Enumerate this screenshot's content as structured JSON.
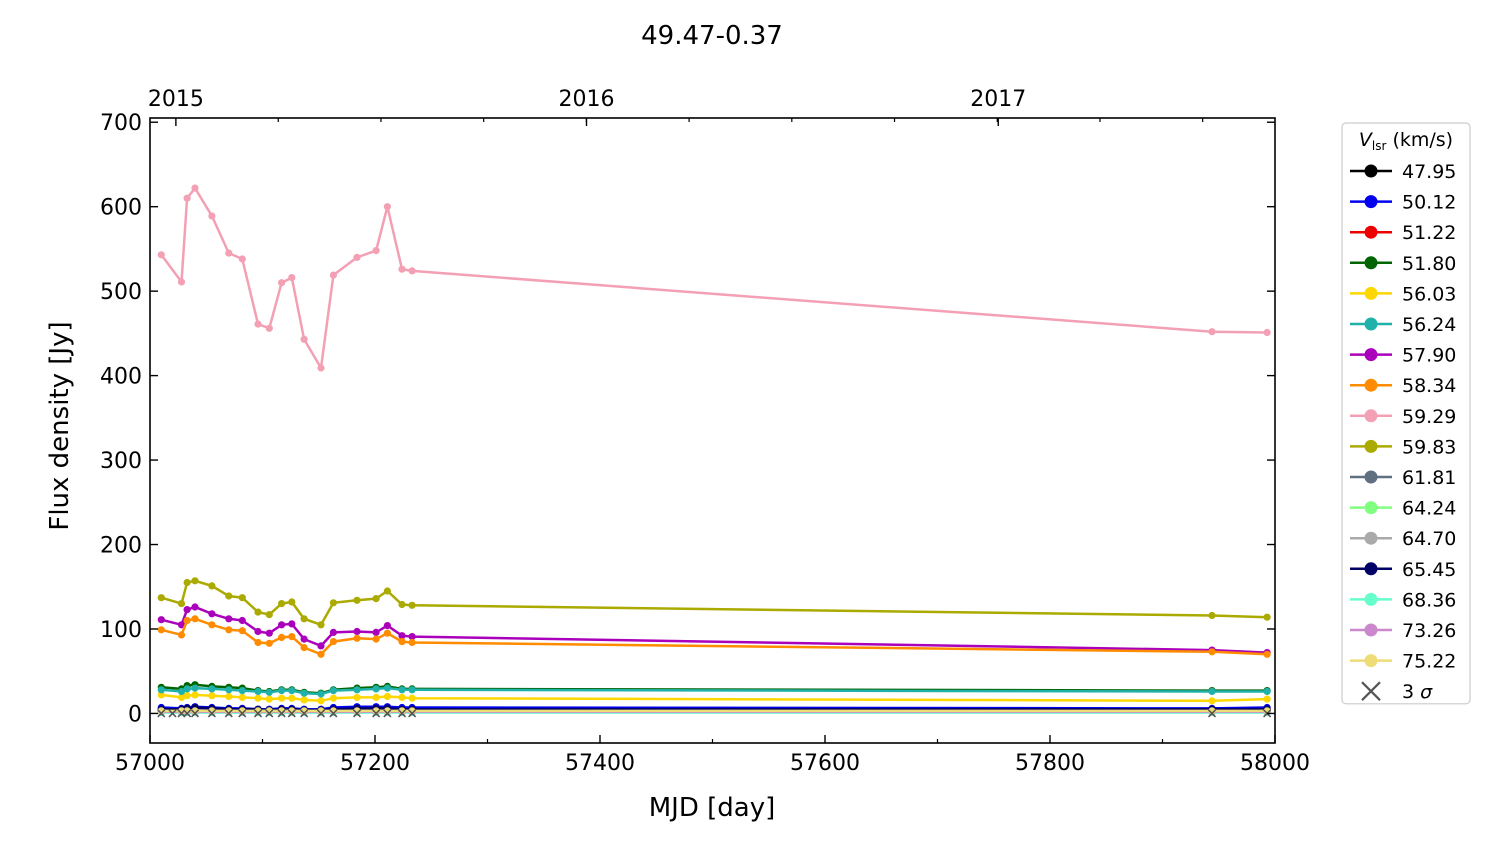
{
  "chart_data": {
    "type": "line",
    "title": "49.47-0.37",
    "xlabel": "MJD [day]",
    "ylabel": "Flux density [Jy]",
    "xlim": [
      57000,
      58000
    ],
    "ylim": [
      -35,
      705
    ],
    "xticks": [
      57000,
      57200,
      57400,
      57600,
      57800,
      58000
    ],
    "yticks": [
      0,
      100,
      200,
      300,
      400,
      500,
      600,
      700
    ],
    "top_axis": {
      "ticks": [
        {
          "label": "2015",
          "mjd": 57023
        },
        {
          "label": "2016",
          "mjd": 57388
        },
        {
          "label": "2017",
          "mjd": 57754
        }
      ]
    },
    "grid": false,
    "legend": {
      "placement": "outside-right",
      "title_var": "V",
      "title_sub": "lsr",
      "title_unit": " (km/s)",
      "limit_label_num": "3 ",
      "limit_label_sym": "σ",
      "limit_color": "#555555"
    },
    "x": [
      57010,
      57028,
      57033,
      57040,
      57055,
      57070,
      57082,
      57096,
      57106,
      57117,
      57126,
      57137,
      57152,
      57163,
      57184,
      57201,
      57211,
      57224,
      57233,
      57944,
      57993
    ],
    "series": [
      {
        "name": "47.95",
        "color": "#000000",
        "values": [
          5,
          4,
          4,
          5,
          5,
          4,
          4,
          4,
          4,
          4,
          4,
          4,
          4,
          4,
          5,
          5,
          5,
          5,
          5,
          4,
          4
        ]
      },
      {
        "name": "50.12",
        "color": "#0000ee",
        "values": [
          7,
          6,
          7,
          8,
          7,
          6,
          6,
          5,
          5,
          6,
          6,
          5,
          5,
          7,
          8,
          8,
          8,
          7,
          7,
          6,
          7
        ]
      },
      {
        "name": "51.22",
        "color": "#ee0000",
        "values": [
          3,
          3,
          3,
          3,
          3,
          3,
          3,
          3,
          3,
          3,
          3,
          3,
          3,
          3,
          3,
          3,
          3,
          3,
          3,
          2,
          2
        ]
      },
      {
        "name": "51.80",
        "color": "#006400",
        "values": [
          31,
          29,
          33,
          34,
          32,
          31,
          30,
          27,
          26,
          28,
          28,
          25,
          24,
          28,
          30,
          31,
          32,
          29,
          29,
          27,
          27
        ]
      },
      {
        "name": "56.03",
        "color": "#ffd700",
        "values": [
          22,
          19,
          21,
          22,
          21,
          20,
          19,
          18,
          17,
          18,
          18,
          16,
          15,
          18,
          19,
          19,
          20,
          19,
          18,
          15,
          17
        ]
      },
      {
        "name": "56.24",
        "color": "#20b2aa",
        "values": [
          28,
          26,
          29,
          30,
          29,
          28,
          27,
          26,
          25,
          27,
          27,
          24,
          23,
          27,
          28,
          29,
          30,
          28,
          28,
          26,
          26
        ]
      },
      {
        "name": "57.90",
        "color": "#aa00bb",
        "values": [
          111,
          105,
          123,
          126,
          118,
          112,
          110,
          97,
          95,
          105,
          106,
          88,
          80,
          96,
          97,
          96,
          104,
          92,
          91,
          75,
          72
        ]
      },
      {
        "name": "58.34",
        "color": "#ff8c00",
        "values": [
          99,
          93,
          110,
          112,
          105,
          99,
          98,
          84,
          83,
          90,
          91,
          78,
          70,
          85,
          89,
          88,
          95,
          85,
          84,
          73,
          70
        ]
      },
      {
        "name": "59.29",
        "color": "#f4a0b4",
        "values": [
          543,
          511,
          610,
          622,
          589,
          545,
          538,
          461,
          456,
          510,
          516,
          443,
          409,
          519,
          540,
          548,
          600,
          526,
          524,
          452,
          451
        ]
      },
      {
        "name": "59.83",
        "color": "#aaaa00",
        "values": [
          137,
          130,
          155,
          157,
          151,
          139,
          137,
          120,
          117,
          130,
          132,
          112,
          105,
          131,
          134,
          136,
          145,
          129,
          128,
          116,
          114
        ]
      },
      {
        "name": "61.81",
        "color": "#607080",
        "values": [
          4,
          4,
          4,
          4,
          4,
          4,
          4,
          4,
          4,
          4,
          4,
          4,
          4,
          4,
          4,
          4,
          4,
          4,
          4,
          3,
          3
        ]
      },
      {
        "name": "64.24",
        "color": "#80ff80",
        "values": [
          2,
          2,
          2,
          2,
          2,
          2,
          2,
          2,
          2,
          2,
          2,
          2,
          2,
          2,
          2,
          2,
          2,
          2,
          2,
          2,
          2
        ]
      },
      {
        "name": "64.70",
        "color": "#aaaaaa",
        "values": [
          3,
          3,
          3,
          3,
          3,
          3,
          3,
          3,
          3,
          3,
          3,
          3,
          3,
          3,
          3,
          3,
          3,
          3,
          3,
          3,
          3
        ]
      },
      {
        "name": "65.45",
        "color": "#000066",
        "values": [
          5,
          5,
          6,
          7,
          6,
          5,
          5,
          5,
          4,
          5,
          5,
          4,
          4,
          5,
          6,
          6,
          6,
          5,
          5,
          5,
          5
        ]
      },
      {
        "name": "68.36",
        "color": "#66ffcc",
        "values": [
          1,
          1,
          1,
          1,
          1,
          1,
          1,
          1,
          1,
          1,
          1,
          1,
          1,
          1,
          1,
          1,
          1,
          1,
          1,
          1,
          1
        ]
      },
      {
        "name": "73.26",
        "color": "#cc88cc",
        "values": [
          2,
          2,
          2,
          2,
          2,
          2,
          2,
          2,
          2,
          2,
          2,
          2,
          2,
          2,
          2,
          2,
          2,
          2,
          2,
          2,
          2
        ]
      },
      {
        "name": "75.22",
        "color": "#eedd77",
        "values": [
          3,
          3,
          3,
          3,
          3,
          3,
          3,
          3,
          3,
          3,
          3,
          3,
          3,
          3,
          3,
          3,
          3,
          3,
          3,
          3,
          3
        ]
      }
    ],
    "upper_limits_3sigma": [
      {
        "x": 57010,
        "y": 0
      },
      {
        "x": 57020,
        "y": 0
      },
      {
        "x": 57028,
        "y": 0
      },
      {
        "x": 57033,
        "y": 0
      },
      {
        "x": 57040,
        "y": 0
      },
      {
        "x": 57055,
        "y": 0
      },
      {
        "x": 57070,
        "y": 0
      },
      {
        "x": 57082,
        "y": 0
      },
      {
        "x": 57096,
        "y": 0
      },
      {
        "x": 57106,
        "y": 0
      },
      {
        "x": 57117,
        "y": 0
      },
      {
        "x": 57126,
        "y": 0
      },
      {
        "x": 57137,
        "y": 0
      },
      {
        "x": 57152,
        "y": 0
      },
      {
        "x": 57163,
        "y": 0
      },
      {
        "x": 57184,
        "y": 0
      },
      {
        "x": 57201,
        "y": 0
      },
      {
        "x": 57211,
        "y": 0
      },
      {
        "x": 57224,
        "y": 0
      },
      {
        "x": 57233,
        "y": 0
      },
      {
        "x": 57944,
        "y": 0
      },
      {
        "x": 57993,
        "y": 0
      }
    ]
  }
}
